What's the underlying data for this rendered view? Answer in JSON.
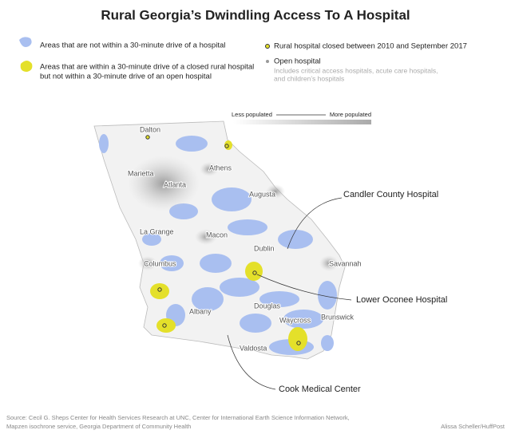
{
  "title": "Rural Georgia’s Dwindling Access To A Hospital",
  "legend": {
    "not_within": "Areas that are not within a 30-minute drive of a hospital",
    "closed_area": [
      "Areas that are within a 30-minute drive of a closed rural hospital",
      "but not within a 30-minute drive of an open hospital"
    ],
    "closed_hospital": "Rural hospital closed between 2010 and September 2017",
    "open_hospital": "Open hospital",
    "open_note": [
      "Includes critical access hospitals, acute care hospitals,",
      "and children’s hospitals"
    ]
  },
  "scale": {
    "less": "Less populated",
    "more": "More populated"
  },
  "cities": [
    "Dalton",
    "Athens",
    "Marietta",
    "Atlanta",
    "Augusta",
    "La Grange",
    "Macon",
    "Dublin",
    "Columbus",
    "Savannah",
    "Douglas",
    "Albany",
    "Waycross",
    "Brunswick",
    "Valdosta"
  ],
  "callouts": [
    "Candler County Hospital",
    "Lower Oconee Hospital",
    "Cook Medical Center"
  ],
  "source": [
    "Source: Cecil G. Sheps Center for Health Services Research at UNC, Center for International Earth Science Information Network,",
    "Mapzen isochrone service, Georgia Department of Community Health"
  ],
  "credit": "Alissa Scheller/HuffPost"
}
